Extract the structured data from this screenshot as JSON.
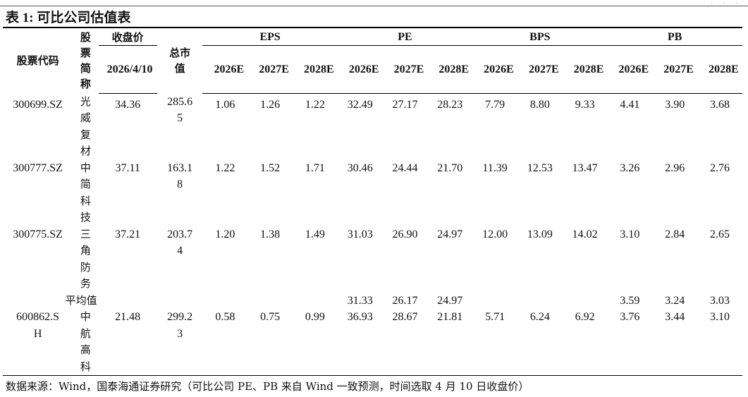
{
  "title": "表 1:  可比公司估值表",
  "header": {
    "code": "股票代码",
    "name": "股票简称",
    "close_group": "收盘价",
    "close_date": "2026/4/10",
    "mktcap": "总市值",
    "groups": [
      "EPS",
      "PE",
      "BPS",
      "PB"
    ],
    "years": [
      "2026E",
      "2027E",
      "2028E"
    ]
  },
  "rows": [
    {
      "code": "300699.SZ",
      "name": "光威复材",
      "close": "34.36",
      "mktcap": "285.65",
      "eps": [
        "1.06",
        "1.26",
        "1.22"
      ],
      "pe": [
        "32.49",
        "27.17",
        "28.23"
      ],
      "bps": [
        "7.79",
        "8.80",
        "9.33"
      ],
      "pb": [
        "4.41",
        "3.90",
        "3.68"
      ]
    },
    {
      "code": "300777.SZ",
      "name": "中简科技",
      "close": "37.11",
      "mktcap": "163.18",
      "eps": [
        "1.22",
        "1.52",
        "1.71"
      ],
      "pe": [
        "30.46",
        "24.44",
        "21.70"
      ],
      "bps": [
        "11.39",
        "12.53",
        "13.47"
      ],
      "pb": [
        "3.26",
        "2.96",
        "2.76"
      ]
    },
    {
      "code": "300775.SZ",
      "name": "三角防务",
      "close": "37.21",
      "mktcap": "203.74",
      "eps": [
        "1.20",
        "1.38",
        "1.49"
      ],
      "pe": [
        "31.03",
        "26.90",
        "24.97"
      ],
      "bps": [
        "12.00",
        "13.09",
        "14.02"
      ],
      "pb": [
        "3.10",
        "2.84",
        "2.65"
      ]
    }
  ],
  "average": {
    "label": "平均值",
    "pe": [
      "31.33",
      "26.17",
      "24.97"
    ],
    "pb": [
      "3.59",
      "3.24",
      "3.03"
    ]
  },
  "target": {
    "code": "600862.SH",
    "name": "中航高科",
    "close": "21.48",
    "mktcap": "299.23",
    "eps": [
      "0.58",
      "0.75",
      "0.99"
    ],
    "pe": [
      "36.93",
      "28.67",
      "21.81"
    ],
    "bps": [
      "5.71",
      "6.24",
      "6.92"
    ],
    "pb": [
      "3.76",
      "3.44",
      "3.10"
    ]
  },
  "source": "数据来源：Wind，国泰海通证券研究（可比公司 PE、PB 来自 Wind 一致预测，时间选取 4 月 10 日收盘价）"
}
